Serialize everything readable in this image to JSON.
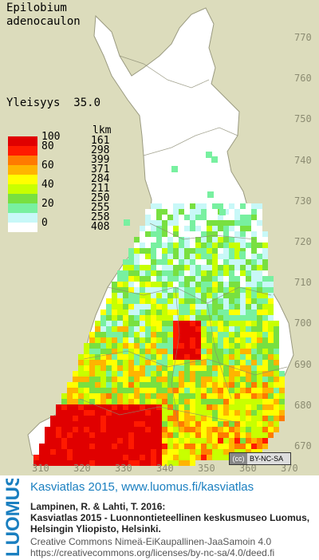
{
  "species": [
    "Epilobium",
    "adenocaulon"
  ],
  "frequency": {
    "label": "Yleisyys",
    "value": "35.0"
  },
  "legend": {
    "count_header": "lkm",
    "classes": [
      {
        "value": "100",
        "count": "161",
        "color": "#e00000"
      },
      {
        "value": "80",
        "count": "298",
        "color": "#ff1a00"
      },
      {
        "value": "",
        "count": "399",
        "color": "#ff7a00"
      },
      {
        "value": "60",
        "count": "371",
        "color": "#ffb400"
      },
      {
        "value": "",
        "count": "284",
        "color": "#ffff00"
      },
      {
        "value": "40",
        "count": "211",
        "color": "#c8ff00"
      },
      {
        "value": "",
        "count": "250",
        "color": "#78e040"
      },
      {
        "value": "20",
        "count": "255",
        "color": "#78f0a0"
      },
      {
        "value": "",
        "count": "258",
        "color": "#c8f8f8"
      },
      {
        "value": "0",
        "count": "408",
        "color": "#ffffff"
      }
    ]
  },
  "grid_north": [
    "770",
    "760",
    "750",
    "740",
    "730",
    "720",
    "710",
    "700",
    "690",
    "680",
    "670"
  ],
  "grid_east": [
    "310",
    "320",
    "330",
    "340",
    "350",
    "360",
    "370"
  ],
  "license_badge": "BY-NC-SA",
  "footer": {
    "logo": "LUOMUS",
    "title": "Kasviatlas 2015, www.luomus.fi/kasviatlas",
    "cite1": "Lampinen, R. & Lahti, T. 2016:",
    "cite2": "Kasviatlas 2015 - Luonnontieteellinen keskusmuseo Luomus,",
    "cite3": "Helsingin Yliopisto, Helsinki.",
    "lic1": "Creative Commons Nimeä-EiKaupallinen-JaaSamoin 4.0",
    "lic2": "https://creativecommons.org/licenses/by-nc-sa/4.0/deed.fi"
  }
}
